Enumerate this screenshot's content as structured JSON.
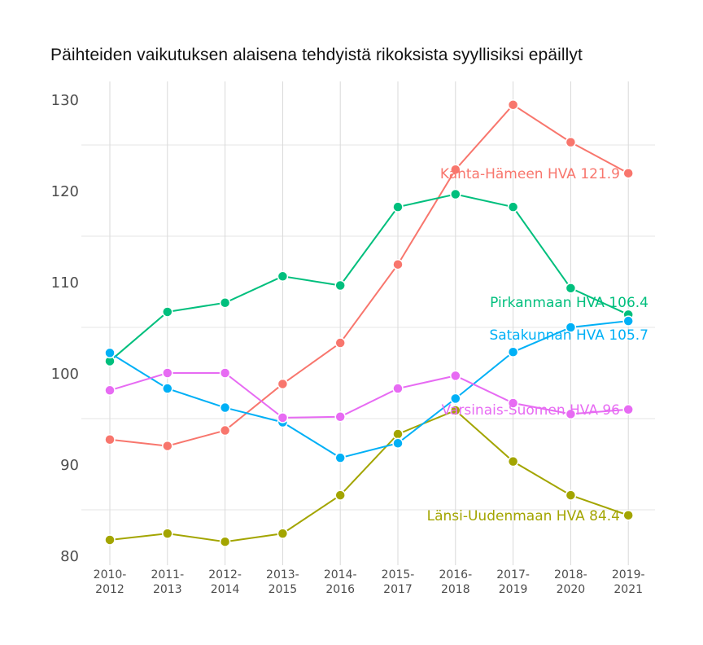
{
  "chart_data": {
    "type": "line",
    "title": "Päihteiden vaikutuksen alaisena tehdyistä rikoksista syyllisiksi epäillyt",
    "xlabel": "",
    "ylabel": "",
    "ylim": [
      79,
      131
    ],
    "yticks": [
      80,
      90,
      100,
      110,
      120,
      130
    ],
    "grid": true,
    "legend": "direct end labels",
    "categories": [
      "2010-2012",
      "2011-2013",
      "2012-2014",
      "2013-2015",
      "2014-2016",
      "2015-2017",
      "2016-2018",
      "2017-2019",
      "2018-2020",
      "2019-2021"
    ],
    "series": [
      {
        "name": "Kanta-Hämeen HVA",
        "label": "Kanta-Hämeen HVA 121.9",
        "color": "#F8766D",
        "values": [
          92.7,
          92.0,
          93.7,
          98.8,
          103.3,
          111.9,
          122.3,
          129.4,
          125.3,
          121.9
        ]
      },
      {
        "name": "Länsi-Uudenmaan HVA",
        "label": "Länsi-Uudenmaan HVA 84.4",
        "color": "#A3A500",
        "values": [
          81.7,
          82.4,
          81.5,
          82.4,
          86.6,
          93.3,
          95.9,
          90.3,
          86.6,
          84.4
        ]
      },
      {
        "name": "Pirkanmaan HVA",
        "label": "Pirkanmaan HVA 106.4",
        "color": "#00BF7D",
        "values": [
          101.3,
          106.7,
          107.7,
          110.6,
          109.6,
          118.2,
          119.6,
          118.2,
          109.3,
          106.4
        ]
      },
      {
        "name": "Satakunnan HVA",
        "label": "Satakunnan HVA 105.7",
        "color": "#00B0F6",
        "values": [
          102.2,
          98.3,
          96.2,
          94.6,
          90.7,
          92.3,
          97.2,
          102.3,
          105.0,
          105.7
        ]
      },
      {
        "name": "Varsinais-Suomen HVA",
        "label": "Varsinais-Suomen HVA 96",
        "color": "#E76BF3",
        "values": [
          98.1,
          100.0,
          100.0,
          95.1,
          95.2,
          98.3,
          99.7,
          96.7,
          95.5,
          96.0
        ]
      }
    ]
  }
}
